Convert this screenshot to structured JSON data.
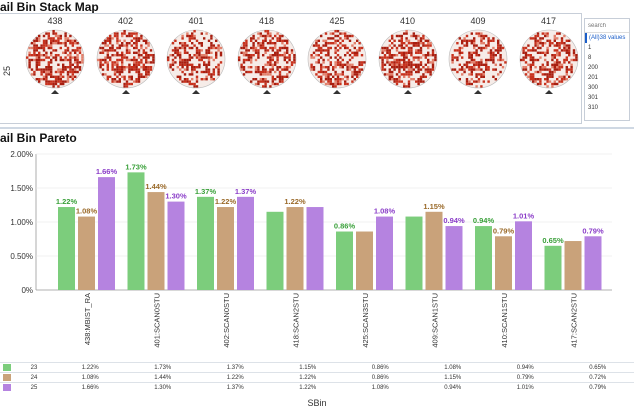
{
  "stack_map": {
    "title": "ail Bin Stack Map",
    "row_label": "25",
    "wafers": [
      {
        "label": "438",
        "density": 0.62,
        "color": "#c8321e"
      },
      {
        "label": "402",
        "density": 0.55,
        "color": "#c8321e"
      },
      {
        "label": "401",
        "density": 0.42,
        "color": "#c8321e"
      },
      {
        "label": "418",
        "density": 0.58,
        "color": "#c8321e"
      },
      {
        "label": "425",
        "density": 0.5,
        "color": "#c8321e"
      },
      {
        "label": "410",
        "density": 0.55,
        "color": "#c8321e"
      },
      {
        "label": "409",
        "density": 0.4,
        "color": "#c8321e"
      },
      {
        "label": "417",
        "density": 0.52,
        "color": "#c8321e"
      }
    ]
  },
  "filter": {
    "placeholder": "search",
    "options": [
      "(All)38 values",
      "1",
      "8",
      "200",
      "201",
      "300",
      "301",
      "310"
    ],
    "selected_index": 0
  },
  "pareto": {
    "title": "ail Bin Pareto",
    "xlabel": "SBin"
  },
  "chart_data": {
    "type": "bar",
    "title": "ail Bin Pareto",
    "xlabel": "SBin",
    "ylabel": "",
    "ylim": [
      0,
      2.0
    ],
    "yticks": [
      "0%",
      "0.50%",
      "1.00%",
      "1.50%",
      "2.00%"
    ],
    "ytick_values": [
      0,
      0.5,
      1.0,
      1.5,
      2.0
    ],
    "categories": [
      "438:MBIST_RA",
      "401:SCAN0STU",
      "402:SCAN0STU",
      "418:SCAN2STU",
      "425:SCAN3STU",
      "409:SCAN1STU",
      "410:SCAN1STU",
      "417:SCAN2STU"
    ],
    "series": [
      {
        "name": "23",
        "color": "#7ccd7c",
        "label_color": "#3aa03a",
        "values": [
          1.22,
          1.73,
          1.37,
          1.15,
          0.86,
          1.08,
          0.94,
          0.65
        ],
        "display": [
          "1.22%",
          "1.73%",
          "1.37%",
          "1.15%",
          "0.86%",
          "1.08%",
          "0.94%",
          "0.65%"
        ],
        "labeled": [
          true,
          true,
          true,
          false,
          true,
          false,
          true,
          true
        ]
      },
      {
        "name": "24",
        "color": "#c9a27a",
        "label_color": "#9a6a2a",
        "values": [
          1.08,
          1.44,
          1.22,
          1.22,
          0.86,
          1.15,
          0.79,
          0.72
        ],
        "display": [
          "1.08%",
          "1.44%",
          "1.22%",
          "1.22%",
          "0.86%",
          "1.15%",
          "0.79%",
          "0.72%"
        ],
        "labeled": [
          true,
          true,
          true,
          true,
          false,
          true,
          true,
          false
        ]
      },
      {
        "name": "25",
        "color": "#b583e0",
        "label_color": "#8a3cc8",
        "values": [
          1.66,
          1.3,
          1.37,
          1.22,
          1.08,
          0.94,
          1.01,
          0.79
        ],
        "display": [
          "1.66%",
          "1.30%",
          "1.37%",
          "1.22%",
          "1.08%",
          "0.94%",
          "1.01%",
          "0.79%"
        ],
        "labeled": [
          true,
          true,
          true,
          false,
          true,
          true,
          true,
          true
        ]
      }
    ]
  }
}
